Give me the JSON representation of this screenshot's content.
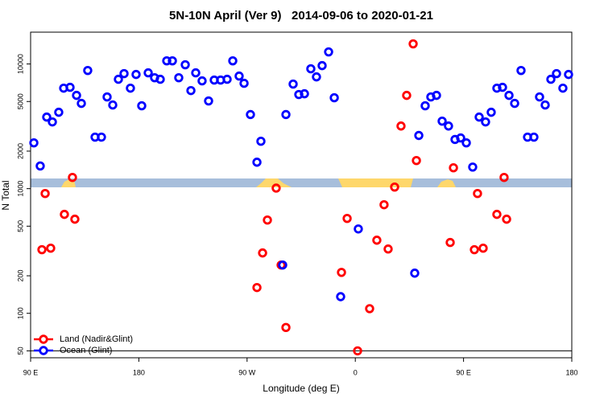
{
  "chart_data": {
    "type": "scatter",
    "title": "5N-10N April (Ver 9)   2014-09-06 to 2020-01-21",
    "x_label": "Longitude (deg E)",
    "y_label": "N Total",
    "log_y": true,
    "legend": "bottom-left",
    "xlim": [
      90,
      540
    ],
    "ylim": [
      44,
      18000
    ],
    "xticks": [
      {
        "value": 90,
        "label": "90 E"
      },
      {
        "value": 180,
        "label": "180"
      },
      {
        "value": 270,
        "label": "90 W"
      },
      {
        "value": 360,
        "label": "0"
      },
      {
        "value": 450,
        "label": "90 E"
      },
      {
        "value": 540,
        "label": "180"
      }
    ],
    "yticks": [
      50,
      100,
      200,
      500,
      1000,
      2000,
      5000,
      10000
    ],
    "hline": 50,
    "series": [
      {
        "name": "Land (Nadir&Glint)",
        "color": "#ff0000",
        "x": [
          99.4,
          102.1,
          106.7,
          118.1,
          124.8,
          126.8,
          278.2,
          282.9,
          286.9,
          294.2,
          298.3,
          302.3,
          348.5,
          353.2,
          361.9,
          371.9,
          377.9,
          383.9,
          387.3,
          392.7,
          398.0,
          402.7,
          408.1,
          410.8,
          438.9,
          441.6,
          459.0,
          461.6,
          466.3,
          477.7,
          483.7,
          485.8
        ],
        "values": [
          324,
          914,
          333,
          622,
          1230,
          569,
          161,
          305,
          560,
          1010,
          244,
          77,
          213,
          577,
          50,
          109,
          386,
          743,
          328,
          1030,
          3180,
          5600,
          14500,
          1680,
          370,
          1470,
          324,
          914,
          333,
          622,
          1230,
          569
        ]
      },
      {
        "name": "Ocean (Glint)",
        "color": "#0000ff",
        "x": [
          92.7,
          98.0,
          103.4,
          108.1,
          113.4,
          117.5,
          122.8,
          128.2,
          132.2,
          137.5,
          143.6,
          148.9,
          153.6,
          158.3,
          163.0,
          167.7,
          173.0,
          177.7,
          182.4,
          187.8,
          193.1,
          197.8,
          203.2,
          207.9,
          213.2,
          218.6,
          223.3,
          227.3,
          232.6,
          238.0,
          242.7,
          248.0,
          253.4,
          258.1,
          263.4,
          267.5,
          272.8,
          278.2,
          281.5,
          299.6,
          302.3,
          308.3,
          313.0,
          317.7,
          323.0,
          327.7,
          332.4,
          337.8,
          342.5,
          347.8,
          362.5,
          409.4,
          412.8,
          418.1,
          422.8,
          427.5,
          432.2,
          437.5,
          442.9,
          447.6,
          452.3,
          457.6,
          463.0,
          468.3,
          473.0,
          477.7,
          482.4,
          487.8,
          492.5,
          497.8,
          503.2,
          508.5,
          513.2,
          517.9,
          522.6,
          527.3,
          532.6,
          537.3
        ],
        "values": [
          2330,
          1520,
          3750,
          3430,
          4100,
          6400,
          6500,
          5600,
          4830,
          8870,
          2590,
          2590,
          5440,
          4690,
          7540,
          8370,
          6400,
          8240,
          4620,
          8490,
          7760,
          7540,
          10600,
          10600,
          7760,
          9860,
          6120,
          8490,
          7320,
          5050,
          7430,
          7430,
          7540,
          10600,
          8000,
          7000,
          3930,
          1630,
          2400,
          244,
          3930,
          6900,
          5690,
          5770,
          9150,
          7880,
          9700,
          12500,
          5360,
          136,
          475,
          210,
          2670,
          4620,
          5440,
          5600,
          3480,
          3180,
          2480,
          2550,
          2330,
          1490,
          3750,
          3430,
          4100,
          6400,
          6500,
          5600,
          4830,
          8870,
          2590,
          2590,
          5440,
          4690,
          7540,
          8370,
          6400,
          8240
        ]
      }
    ]
  }
}
